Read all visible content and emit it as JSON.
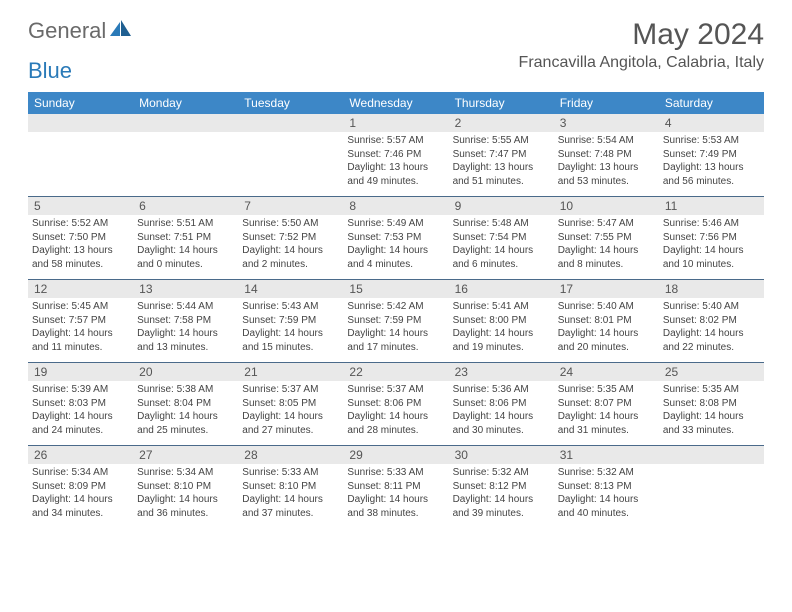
{
  "brand": {
    "part1": "General",
    "part2": "Blue"
  },
  "title": "May 2024",
  "location": "Francavilla Angitola, Calabria, Italy",
  "colors": {
    "header_bg": "#3d87c7",
    "header_text": "#ffffff",
    "daynum_bg": "#e9e9e9",
    "row_border": "#4a6a8a",
    "text": "#444444",
    "title_text": "#555555",
    "logo_grey": "#6a6a6a",
    "logo_blue": "#2a7ab8",
    "background": "#ffffff"
  },
  "typography": {
    "title_fontsize": 30,
    "location_fontsize": 16,
    "weekday_fontsize": 12,
    "daynum_fontsize": 12,
    "cell_fontsize": 10
  },
  "weekdays": [
    "Sunday",
    "Monday",
    "Tuesday",
    "Wednesday",
    "Thursday",
    "Friday",
    "Saturday"
  ],
  "weeks": [
    [
      null,
      null,
      null,
      {
        "n": "1",
        "sr": "Sunrise: 5:57 AM",
        "ss": "Sunset: 7:46 PM",
        "d1": "Daylight: 13 hours",
        "d2": "and 49 minutes."
      },
      {
        "n": "2",
        "sr": "Sunrise: 5:55 AM",
        "ss": "Sunset: 7:47 PM",
        "d1": "Daylight: 13 hours",
        "d2": "and 51 minutes."
      },
      {
        "n": "3",
        "sr": "Sunrise: 5:54 AM",
        "ss": "Sunset: 7:48 PM",
        "d1": "Daylight: 13 hours",
        "d2": "and 53 minutes."
      },
      {
        "n": "4",
        "sr": "Sunrise: 5:53 AM",
        "ss": "Sunset: 7:49 PM",
        "d1": "Daylight: 13 hours",
        "d2": "and 56 minutes."
      }
    ],
    [
      {
        "n": "5",
        "sr": "Sunrise: 5:52 AM",
        "ss": "Sunset: 7:50 PM",
        "d1": "Daylight: 13 hours",
        "d2": "and 58 minutes."
      },
      {
        "n": "6",
        "sr": "Sunrise: 5:51 AM",
        "ss": "Sunset: 7:51 PM",
        "d1": "Daylight: 14 hours",
        "d2": "and 0 minutes."
      },
      {
        "n": "7",
        "sr": "Sunrise: 5:50 AM",
        "ss": "Sunset: 7:52 PM",
        "d1": "Daylight: 14 hours",
        "d2": "and 2 minutes."
      },
      {
        "n": "8",
        "sr": "Sunrise: 5:49 AM",
        "ss": "Sunset: 7:53 PM",
        "d1": "Daylight: 14 hours",
        "d2": "and 4 minutes."
      },
      {
        "n": "9",
        "sr": "Sunrise: 5:48 AM",
        "ss": "Sunset: 7:54 PM",
        "d1": "Daylight: 14 hours",
        "d2": "and 6 minutes."
      },
      {
        "n": "10",
        "sr": "Sunrise: 5:47 AM",
        "ss": "Sunset: 7:55 PM",
        "d1": "Daylight: 14 hours",
        "d2": "and 8 minutes."
      },
      {
        "n": "11",
        "sr": "Sunrise: 5:46 AM",
        "ss": "Sunset: 7:56 PM",
        "d1": "Daylight: 14 hours",
        "d2": "and 10 minutes."
      }
    ],
    [
      {
        "n": "12",
        "sr": "Sunrise: 5:45 AM",
        "ss": "Sunset: 7:57 PM",
        "d1": "Daylight: 14 hours",
        "d2": "and 11 minutes."
      },
      {
        "n": "13",
        "sr": "Sunrise: 5:44 AM",
        "ss": "Sunset: 7:58 PM",
        "d1": "Daylight: 14 hours",
        "d2": "and 13 minutes."
      },
      {
        "n": "14",
        "sr": "Sunrise: 5:43 AM",
        "ss": "Sunset: 7:59 PM",
        "d1": "Daylight: 14 hours",
        "d2": "and 15 minutes."
      },
      {
        "n": "15",
        "sr": "Sunrise: 5:42 AM",
        "ss": "Sunset: 7:59 PM",
        "d1": "Daylight: 14 hours",
        "d2": "and 17 minutes."
      },
      {
        "n": "16",
        "sr": "Sunrise: 5:41 AM",
        "ss": "Sunset: 8:00 PM",
        "d1": "Daylight: 14 hours",
        "d2": "and 19 minutes."
      },
      {
        "n": "17",
        "sr": "Sunrise: 5:40 AM",
        "ss": "Sunset: 8:01 PM",
        "d1": "Daylight: 14 hours",
        "d2": "and 20 minutes."
      },
      {
        "n": "18",
        "sr": "Sunrise: 5:40 AM",
        "ss": "Sunset: 8:02 PM",
        "d1": "Daylight: 14 hours",
        "d2": "and 22 minutes."
      }
    ],
    [
      {
        "n": "19",
        "sr": "Sunrise: 5:39 AM",
        "ss": "Sunset: 8:03 PM",
        "d1": "Daylight: 14 hours",
        "d2": "and 24 minutes."
      },
      {
        "n": "20",
        "sr": "Sunrise: 5:38 AM",
        "ss": "Sunset: 8:04 PM",
        "d1": "Daylight: 14 hours",
        "d2": "and 25 minutes."
      },
      {
        "n": "21",
        "sr": "Sunrise: 5:37 AM",
        "ss": "Sunset: 8:05 PM",
        "d1": "Daylight: 14 hours",
        "d2": "and 27 minutes."
      },
      {
        "n": "22",
        "sr": "Sunrise: 5:37 AM",
        "ss": "Sunset: 8:06 PM",
        "d1": "Daylight: 14 hours",
        "d2": "and 28 minutes."
      },
      {
        "n": "23",
        "sr": "Sunrise: 5:36 AM",
        "ss": "Sunset: 8:06 PM",
        "d1": "Daylight: 14 hours",
        "d2": "and 30 minutes."
      },
      {
        "n": "24",
        "sr": "Sunrise: 5:35 AM",
        "ss": "Sunset: 8:07 PM",
        "d1": "Daylight: 14 hours",
        "d2": "and 31 minutes."
      },
      {
        "n": "25",
        "sr": "Sunrise: 5:35 AM",
        "ss": "Sunset: 8:08 PM",
        "d1": "Daylight: 14 hours",
        "d2": "and 33 minutes."
      }
    ],
    [
      {
        "n": "26",
        "sr": "Sunrise: 5:34 AM",
        "ss": "Sunset: 8:09 PM",
        "d1": "Daylight: 14 hours",
        "d2": "and 34 minutes."
      },
      {
        "n": "27",
        "sr": "Sunrise: 5:34 AM",
        "ss": "Sunset: 8:10 PM",
        "d1": "Daylight: 14 hours",
        "d2": "and 36 minutes."
      },
      {
        "n": "28",
        "sr": "Sunrise: 5:33 AM",
        "ss": "Sunset: 8:10 PM",
        "d1": "Daylight: 14 hours",
        "d2": "and 37 minutes."
      },
      {
        "n": "29",
        "sr": "Sunrise: 5:33 AM",
        "ss": "Sunset: 8:11 PM",
        "d1": "Daylight: 14 hours",
        "d2": "and 38 minutes."
      },
      {
        "n": "30",
        "sr": "Sunrise: 5:32 AM",
        "ss": "Sunset: 8:12 PM",
        "d1": "Daylight: 14 hours",
        "d2": "and 39 minutes."
      },
      {
        "n": "31",
        "sr": "Sunrise: 5:32 AM",
        "ss": "Sunset: 8:13 PM",
        "d1": "Daylight: 14 hours",
        "d2": "and 40 minutes."
      },
      null
    ]
  ]
}
